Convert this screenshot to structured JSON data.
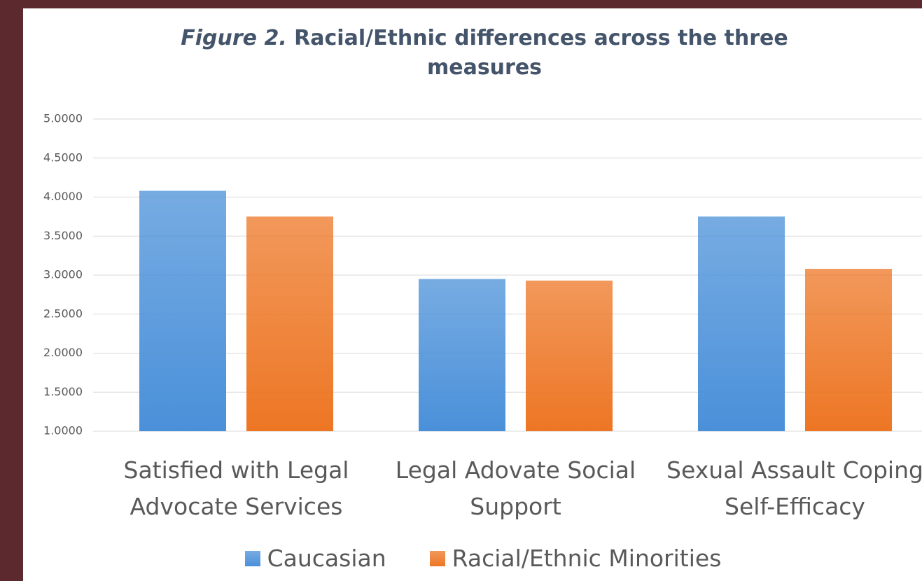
{
  "chart_data": {
    "type": "bar",
    "title_label": "Figure 2.",
    "title": "Racial/Ethnic differences across the three measures",
    "categories": [
      "Satisfied with Legal Advocate Services",
      "Legal Adovate Social Support",
      "Sexual Assault Coping Self-Efficacy"
    ],
    "series": [
      {
        "name": "Caucasian",
        "color": "#4a90d9",
        "values": [
          4.08,
          2.95,
          3.75
        ]
      },
      {
        "name": "Racial/Ethnic Minorities",
        "color": "#ed7624",
        "values": [
          3.75,
          2.93,
          3.08
        ]
      }
    ],
    "ylim": [
      1,
      5
    ],
    "yticks": [
      {
        "value": 1,
        "label": "1.0000"
      },
      {
        "value": 1.5,
        "label": "1.5000"
      },
      {
        "value": 2,
        "label": "2.0000"
      },
      {
        "value": 2.5,
        "label": "2.5000"
      },
      {
        "value": 3,
        "label": "3.0000"
      },
      {
        "value": 3.5,
        "label": "3.5000"
      },
      {
        "value": 4,
        "label": "4.0000"
      },
      {
        "value": 4.5,
        "label": "4.5000"
      },
      {
        "value": 5,
        "label": "5.0000"
      }
    ],
    "grid": true,
    "legend": "bottom"
  }
}
